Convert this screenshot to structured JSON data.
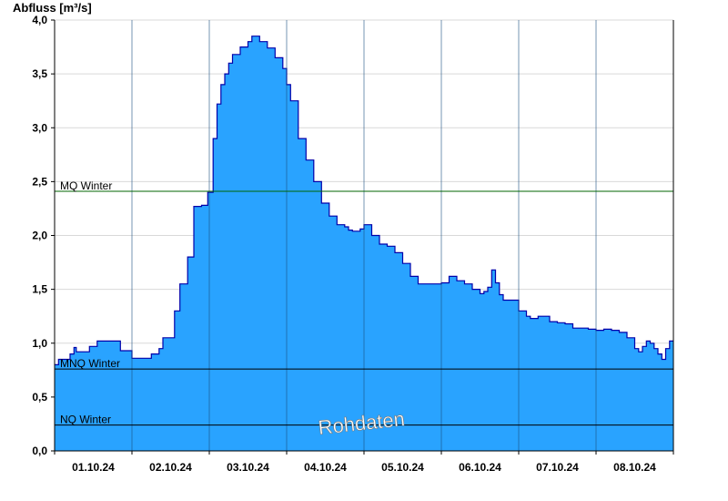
{
  "chart_data": {
    "type": "area",
    "ylabel": "Abfluss [m³/s]",
    "ylim": [
      0,
      4.0
    ],
    "yticks": [
      0.0,
      0.5,
      1.0,
      1.5,
      2.0,
      2.5,
      3.0,
      3.5,
      4.0
    ],
    "ytick_labels": [
      "0,0",
      "0,5",
      "1,0",
      "1,5",
      "2,0",
      "2,5",
      "3,0",
      "3,5",
      "4,0"
    ],
    "xlim_days": [
      0,
      8
    ],
    "xtick_labels": [
      "01.10.24",
      "02.10.24",
      "03.10.24",
      "04.10.24",
      "05.10.24",
      "06.10.24",
      "07.10.24",
      "08.10.24"
    ],
    "grid": true,
    "colors": {
      "fill": "#29a3ff",
      "line": "#0000aa",
      "mq": "#006400",
      "ref": "#000000",
      "grid": "#d9d9d9"
    },
    "reference_lines": [
      {
        "label": "MQ Winter",
        "value": 2.41,
        "color": "#006400"
      },
      {
        "label": "MNQ Winter",
        "value": 0.76,
        "color": "#000000"
      },
      {
        "label": "NQ Winter",
        "value": 0.24,
        "color": "#000000"
      }
    ],
    "watermark": "Rohdaten",
    "series": [
      {
        "x": [
          0.0,
          0.05,
          0.1,
          0.2,
          0.25,
          0.28,
          0.35,
          0.45,
          0.55,
          0.65,
          0.85,
          1.0,
          1.05,
          1.2,
          1.25,
          1.35,
          1.4,
          1.55,
          1.62,
          1.72,
          1.8,
          1.9,
          1.98,
          2.05,
          2.1,
          2.15,
          2.2,
          2.25,
          2.3,
          2.4,
          2.5,
          2.55,
          2.65,
          2.75,
          2.85,
          2.95,
          3.0,
          3.05,
          3.15,
          3.25,
          3.35,
          3.45,
          3.55,
          3.65,
          3.75,
          3.8,
          3.85,
          3.95,
          4.0,
          4.1,
          4.2,
          4.3,
          4.4,
          4.5,
          4.6,
          4.7,
          4.8,
          4.9,
          5.0,
          5.1,
          5.2,
          5.3,
          5.4,
          5.5,
          5.55,
          5.6,
          5.65,
          5.7,
          5.75,
          5.8,
          6.0,
          6.1,
          6.15,
          6.25,
          6.4,
          6.5,
          6.6,
          6.7,
          6.8,
          6.9,
          7.0,
          7.1,
          7.2,
          7.3,
          7.4,
          7.5,
          7.55,
          7.6,
          7.65,
          7.7,
          7.75,
          7.8,
          7.85,
          7.9,
          7.95,
          8.0
        ],
        "y": [
          0.8,
          0.85,
          0.85,
          0.9,
          0.96,
          0.92,
          0.92,
          0.97,
          1.02,
          1.02,
          0.93,
          0.86,
          0.86,
          0.86,
          0.9,
          0.95,
          1.05,
          1.3,
          1.55,
          1.8,
          2.27,
          2.28,
          2.4,
          2.9,
          3.22,
          3.4,
          3.5,
          3.6,
          3.68,
          3.75,
          3.8,
          3.85,
          3.8,
          3.74,
          3.65,
          3.55,
          3.4,
          3.25,
          2.9,
          2.7,
          2.5,
          2.3,
          2.18,
          2.1,
          2.08,
          2.05,
          2.04,
          2.06,
          2.1,
          2.0,
          1.92,
          1.9,
          1.84,
          1.74,
          1.62,
          1.55,
          1.55,
          1.55,
          1.56,
          1.62,
          1.58,
          1.55,
          1.5,
          1.46,
          1.48,
          1.52,
          1.68,
          1.56,
          1.45,
          1.4,
          1.3,
          1.25,
          1.23,
          1.25,
          1.2,
          1.19,
          1.18,
          1.14,
          1.14,
          1.13,
          1.12,
          1.13,
          1.12,
          1.1,
          1.05,
          0.95,
          0.92,
          0.97,
          1.02,
          1.0,
          0.95,
          0.9,
          0.85,
          0.95,
          1.02,
          1.02
        ]
      }
    ]
  }
}
